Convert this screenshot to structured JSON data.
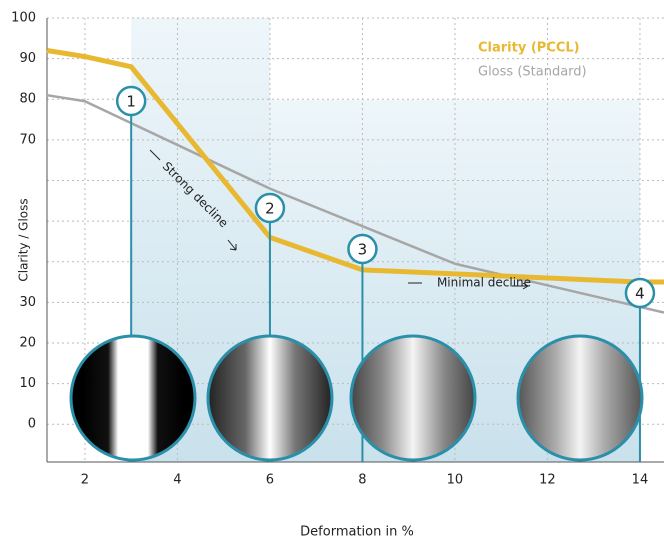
{
  "chart_data": {
    "type": "line",
    "x_label": "Deformation in %",
    "y_label": "Clarity / Gloss",
    "series": [
      {
        "name": "Clarity (PCCL)",
        "color": "#e8b830",
        "x": [
          1.18,
          2,
          3,
          6,
          8,
          14,
          14.52
        ],
        "values": [
          92,
          90.5,
          88,
          46,
          38,
          35,
          35
        ]
      },
      {
        "name": "Gloss (Standard)",
        "color": "#a6a6a6",
        "x": [
          1.18,
          2,
          6,
          10,
          14.52
        ],
        "values": [
          81,
          79.5,
          58,
          39.5,
          27.5
        ]
      }
    ],
    "xlim": [
      1.18,
      14.52
    ],
    "xticks": [
      2,
      4,
      6,
      8,
      10,
      12,
      14
    ],
    "ylim": [
      -9.3,
      100
    ],
    "yticks": [
      0,
      10,
      20,
      30,
      70,
      80,
      90,
      100
    ],
    "ygrid": [
      40,
      50,
      60
    ],
    "grid": true,
    "legend": "top-right",
    "markers": [
      {
        "x": 3,
        "label": "1"
      },
      {
        "x": 6,
        "label": "2"
      },
      {
        "x": 8,
        "label": "3"
      },
      {
        "x": 14,
        "label": "4"
      }
    ],
    "annotations": [
      "Strong decline",
      "Minimal decline"
    ]
  }
}
